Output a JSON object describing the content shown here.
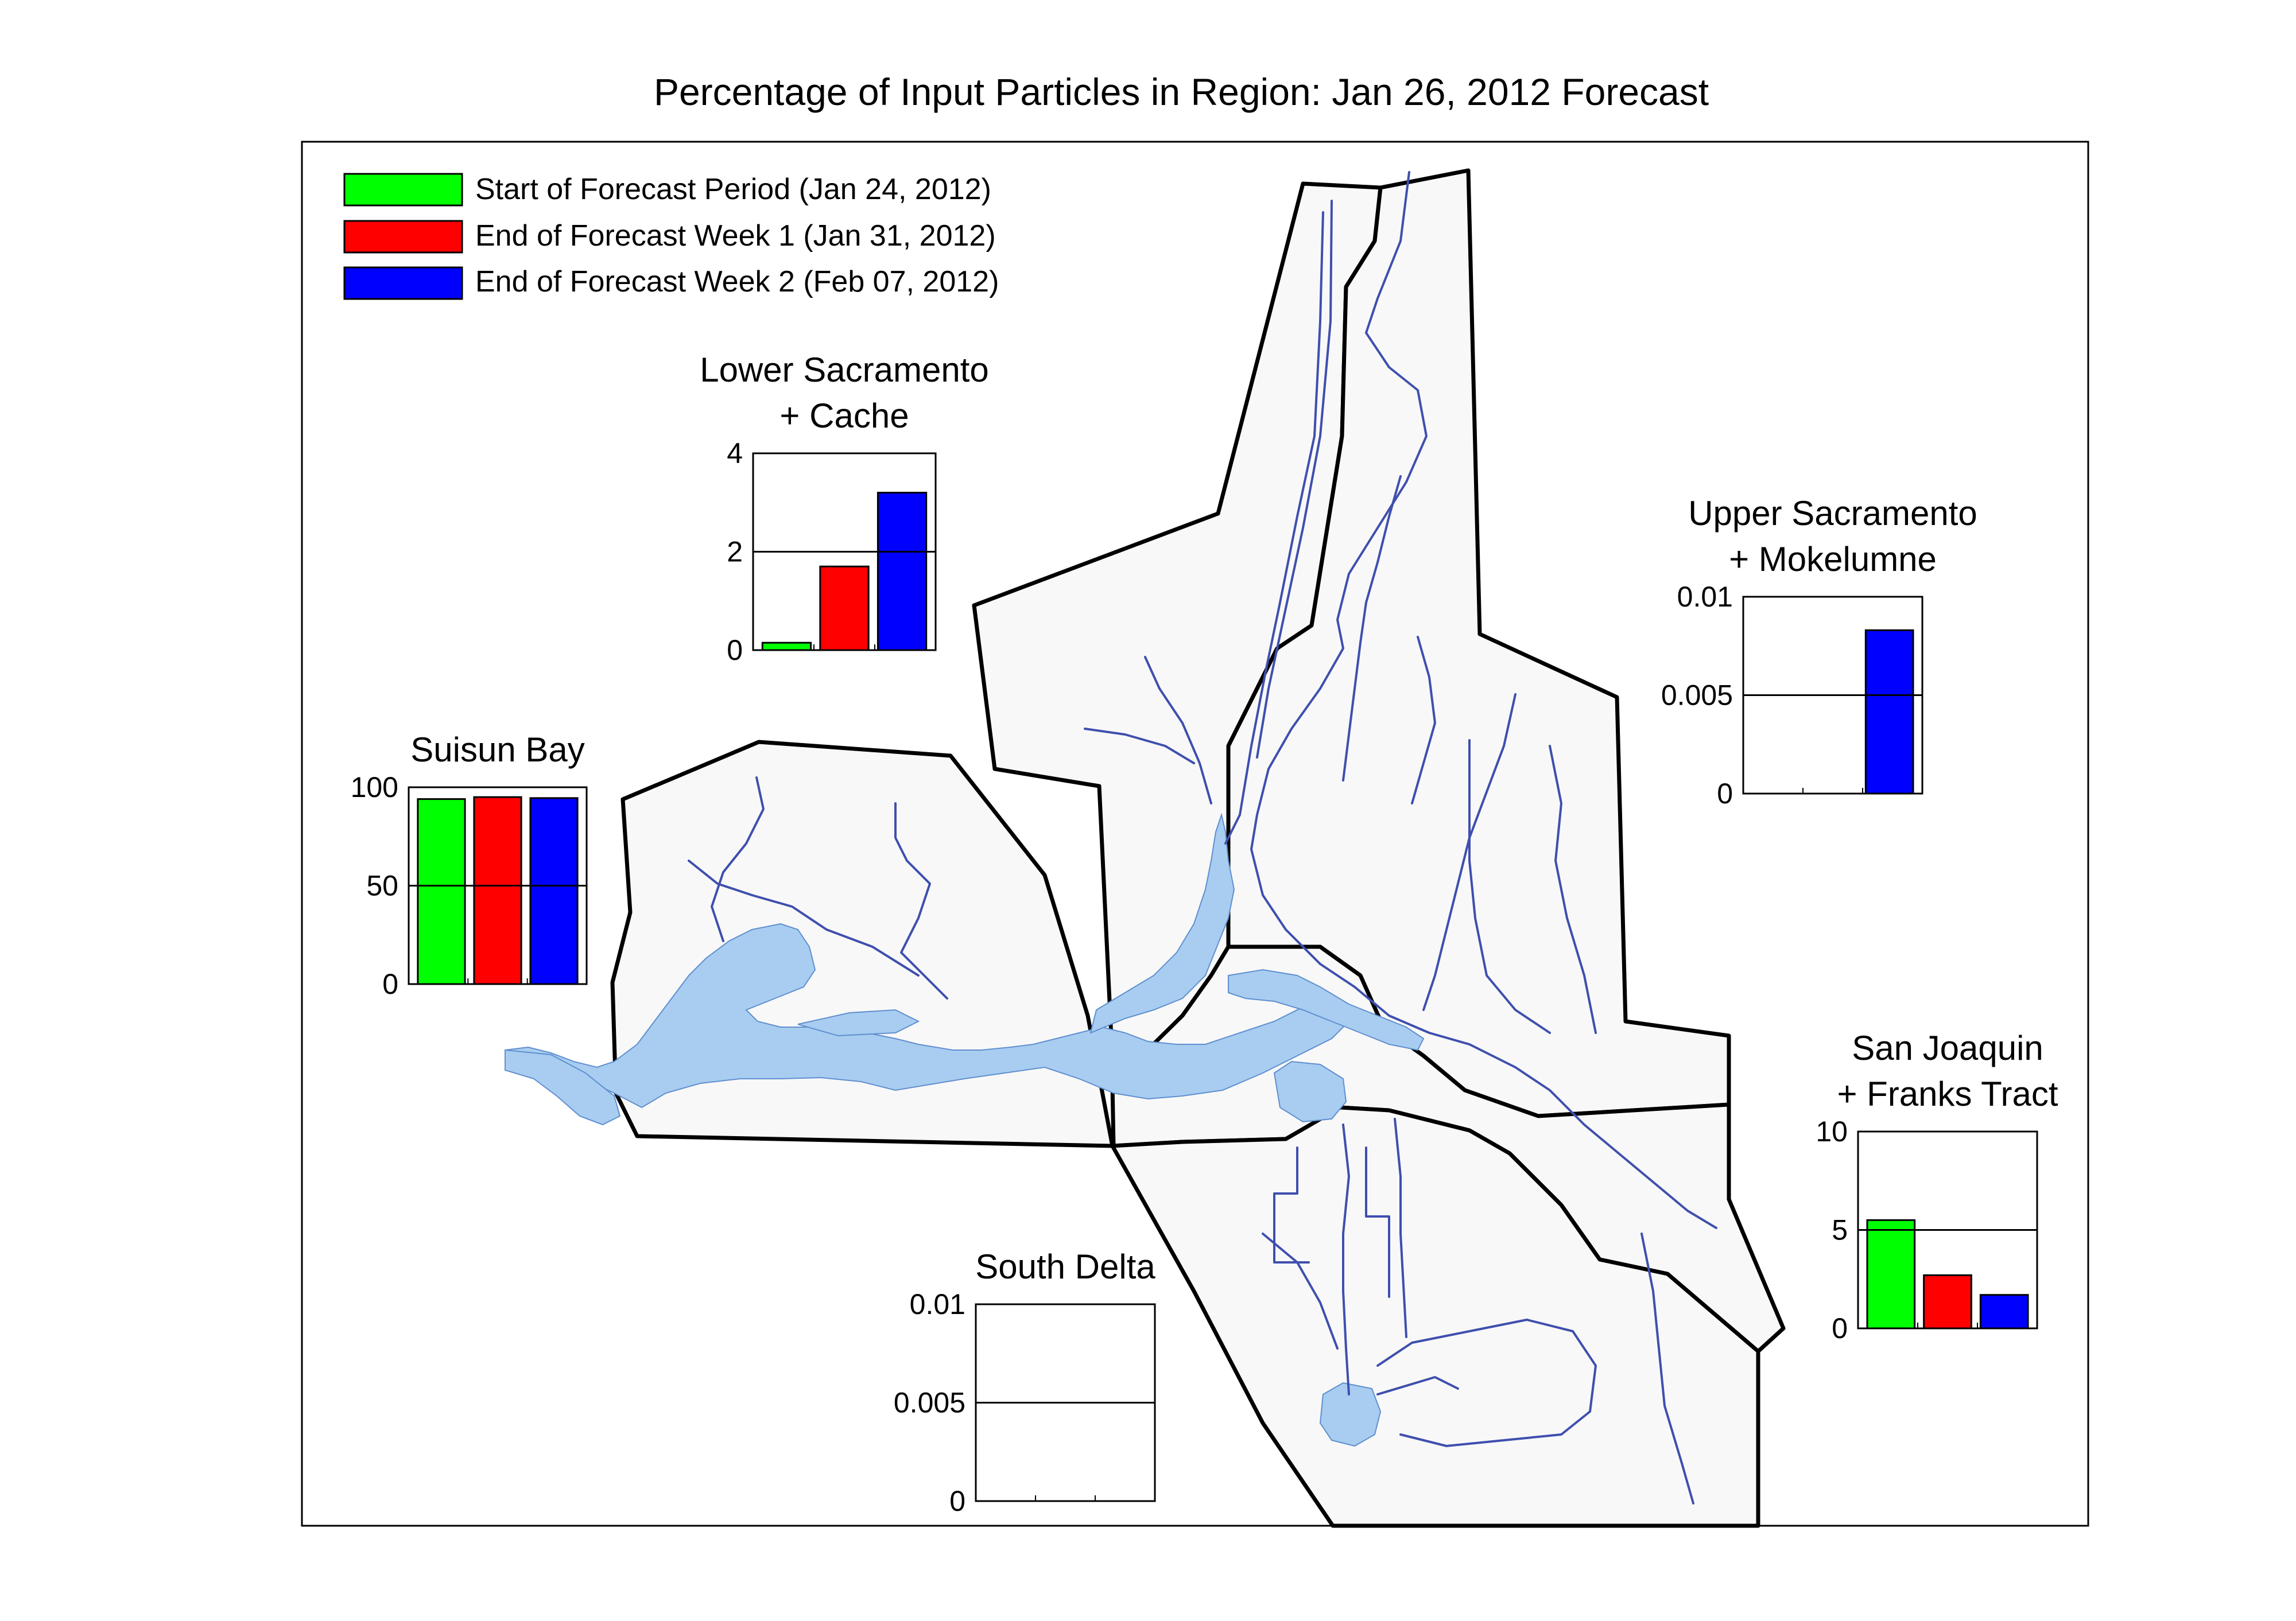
{
  "title": "Percentage of Input Particles in Region: Jan 26, 2012 Forecast",
  "legend": {
    "placement": "top-left",
    "entries": [
      {
        "label": "Start of Forecast Period (Jan 24, 2012)",
        "color": "#00ff00"
      },
      {
        "label": "End of Forecast Week 1 (Jan 31, 2012)",
        "color": "#ff0000"
      },
      {
        "label": "End of Forecast Week 2 (Feb 07, 2012)",
        "color": "#0000ff"
      }
    ]
  },
  "colors": {
    "water": "#a8cdf0",
    "channel": "#3f4fae",
    "region_fill": "#f8f8f8",
    "region_outline": "#000000"
  },
  "chart_data": [
    {
      "type": "bar",
      "region": "Lower Sacramento + Cache",
      "title_lines": [
        "Lower Sacramento",
        "+ Cache"
      ],
      "ylim": [
        0,
        4
      ],
      "ytick_labels": [
        "4",
        "2",
        "0"
      ],
      "ytick_values": [
        4,
        2,
        0
      ],
      "gridline": 2,
      "values": [
        0.15,
        1.7,
        3.2
      ]
    },
    {
      "type": "bar",
      "region": "Upper Sacramento + Mokelumne",
      "title_lines": [
        "Upper Sacramento",
        "+ Mokelumne"
      ],
      "ylim": [
        0,
        0.01
      ],
      "ytick_labels": [
        "0.01",
        "0.005",
        "0"
      ],
      "ytick_values": [
        0.01,
        0.005,
        0
      ],
      "gridline": 0.005,
      "values": [
        0,
        0,
        0.0083
      ]
    },
    {
      "type": "bar",
      "region": "Suisun Bay",
      "title_lines": [
        "Suisun Bay"
      ],
      "ylim": [
        0,
        100
      ],
      "ytick_labels": [
        "100",
        "50",
        "0"
      ],
      "ytick_values": [
        100,
        50,
        0
      ],
      "gridline": 50,
      "values": [
        94,
        95,
        94.5
      ]
    },
    {
      "type": "bar",
      "region": "San Joaquin + Franks Tract",
      "title_lines": [
        "San Joaquin",
        "+ Franks Tract"
      ],
      "ylim": [
        0,
        10
      ],
      "ytick_labels": [
        "10",
        "5",
        "0"
      ],
      "ytick_values": [
        10,
        5,
        0
      ],
      "gridline": 5,
      "values": [
        5.5,
        2.7,
        1.7
      ]
    },
    {
      "type": "bar",
      "region": "South Delta",
      "title_lines": [
        "South Delta"
      ],
      "ylim": [
        0,
        0.01
      ],
      "ytick_labels": [
        "0.01",
        "0.005",
        "0"
      ],
      "ytick_values": [
        0.01,
        0.005,
        0
      ],
      "gridline": 0.005,
      "values": [
        0,
        0,
        0
      ]
    }
  ]
}
